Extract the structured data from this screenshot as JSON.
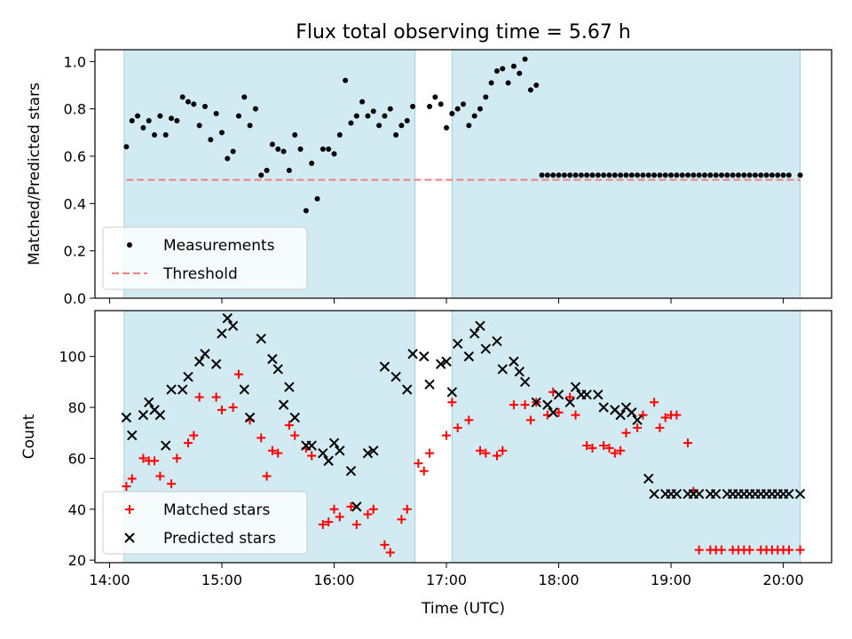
{
  "chart_data": {
    "type": "scatter",
    "title": "Flux total observing time = 5.67 h",
    "xlabel": "Time (UTC)",
    "x_ticks": [
      "14:00",
      "15:00",
      "16:00",
      "17:00",
      "18:00",
      "19:00",
      "20:00"
    ],
    "xlim_hours": [
      13.87,
      20.43
    ],
    "shaded_intervals": [
      [
        14.13,
        16.72
      ],
      [
        17.05,
        20.15
      ]
    ],
    "shade_color": "#add8e6",
    "panels": [
      {
        "ylabel": "Matched/Predicted stars",
        "ylim": [
          0,
          1.05
        ],
        "yticks": [
          "0.0",
          "0.2",
          "0.4",
          "0.6",
          "0.8",
          "1.0"
        ],
        "legend": "lower-left",
        "series": [
          {
            "name": "Measurements",
            "marker": "dot",
            "color": "#000000",
            "x": [
              14.15,
              14.2,
              14.25,
              14.3,
              14.35,
              14.4,
              14.45,
              14.5,
              14.55,
              14.6,
              14.65,
              14.7,
              14.75,
              14.8,
              14.85,
              14.9,
              14.95,
              15.0,
              15.05,
              15.1,
              15.15,
              15.2,
              15.25,
              15.3,
              15.35,
              15.4,
              15.45,
              15.5,
              15.55,
              15.6,
              15.65,
              15.7,
              15.75,
              15.8,
              15.85,
              15.9,
              15.95,
              16.0,
              16.05,
              16.1,
              16.15,
              16.2,
              16.25,
              16.3,
              16.35,
              16.4,
              16.45,
              16.5,
              16.55,
              16.6,
              16.65,
              16.7,
              16.85,
              16.9,
              16.95,
              17.0,
              17.05,
              17.1,
              17.15,
              17.2,
              17.25,
              17.3,
              17.35,
              17.4,
              17.45,
              17.5,
              17.55,
              17.6,
              17.65,
              17.7,
              17.75,
              17.8,
              17.85,
              17.9,
              17.95,
              18.0,
              18.05,
              18.1,
              18.15,
              18.2,
              18.25,
              18.3,
              18.35,
              18.4,
              18.45,
              18.5,
              18.55,
              18.6,
              18.65,
              18.7,
              18.75,
              18.8,
              18.85,
              18.9,
              18.95,
              19.0,
              19.05,
              19.1,
              19.15,
              19.2,
              19.25,
              19.3,
              19.35,
              19.4,
              19.45,
              19.5,
              19.55,
              19.6,
              19.65,
              19.7,
              19.75,
              19.8,
              19.85,
              19.9,
              19.95,
              20.0,
              20.05,
              20.15
            ],
            "y": [
              0.64,
              0.75,
              0.77,
              0.72,
              0.75,
              0.69,
              0.77,
              0.69,
              0.76,
              0.75,
              0.85,
              0.83,
              0.82,
              0.73,
              0.81,
              0.67,
              0.78,
              0.7,
              0.59,
              0.62,
              0.77,
              0.85,
              0.73,
              0.8,
              0.52,
              0.54,
              0.65,
              0.63,
              0.62,
              0.54,
              0.69,
              0.63,
              0.37,
              0.57,
              0.42,
              0.63,
              0.63,
              0.61,
              0.69,
              0.92,
              0.74,
              0.77,
              0.83,
              0.77,
              0.79,
              0.73,
              0.77,
              0.8,
              0.69,
              0.73,
              0.75,
              0.81,
              0.81,
              0.85,
              0.82,
              0.72,
              0.78,
              0.8,
              0.82,
              0.73,
              0.77,
              0.8,
              0.85,
              0.91,
              0.96,
              0.97,
              0.91,
              0.98,
              0.95,
              1.01,
              0.88,
              0.9,
              0.52,
              0.52,
              0.52,
              0.52,
              0.52,
              0.52,
              0.52,
              0.52,
              0.52,
              0.52,
              0.52,
              0.52,
              0.52,
              0.52,
              0.52,
              0.52,
              0.52,
              0.52,
              0.52,
              0.52,
              0.52,
              0.52,
              0.52,
              0.52,
              0.52,
              0.52,
              0.52,
              0.52,
              0.52,
              0.52,
              0.52,
              0.52,
              0.52,
              0.52,
              0.52,
              0.52,
              0.52,
              0.52,
              0.52,
              0.52,
              0.52,
              0.52,
              0.52,
              0.52,
              0.52,
              0.52
            ]
          },
          {
            "name": "Threshold",
            "style": "dashed-line",
            "color": "#f08080",
            "x": [
              14.15,
              20.15
            ],
            "y": [
              0.5,
              0.5
            ]
          }
        ]
      },
      {
        "ylabel": "Count",
        "ylim": [
          19,
          118
        ],
        "yticks": [
          "20",
          "40",
          "60",
          "80",
          "100"
        ],
        "legend": "lower-left",
        "series": [
          {
            "name": "Matched stars",
            "marker": "plus",
            "color": "#ff0000",
            "x": [
              14.15,
              14.2,
              14.3,
              14.35,
              14.4,
              14.45,
              14.55,
              14.6,
              14.7,
              14.75,
              14.8,
              14.95,
              15.0,
              15.1,
              15.15,
              15.25,
              15.35,
              15.4,
              15.45,
              15.5,
              15.6,
              15.65,
              15.75,
              15.8,
              15.9,
              15.95,
              16.0,
              16.05,
              16.15,
              16.2,
              16.3,
              16.35,
              16.45,
              16.5,
              16.6,
              16.65,
              16.75,
              16.8,
              16.85,
              17.0,
              17.05,
              17.1,
              17.2,
              17.3,
              17.35,
              17.45,
              17.5,
              17.6,
              17.7,
              17.75,
              17.8,
              17.9,
              17.95,
              18.0,
              18.1,
              18.15,
              18.25,
              18.3,
              18.4,
              18.45,
              18.5,
              18.55,
              18.6,
              18.7,
              18.75,
              18.85,
              18.9,
              18.95,
              19.0,
              19.05,
              19.15,
              19.2,
              19.25,
              19.35,
              19.4,
              19.45,
              19.55,
              19.6,
              19.65,
              19.7,
              19.8,
              19.85,
              19.9,
              19.95,
              20.0,
              20.05,
              20.15
            ],
            "y": [
              49,
              52,
              60,
              59,
              59,
              53,
              50,
              60,
              66,
              69,
              84,
              84,
              79,
              80,
              93,
              75,
              68,
              53,
              63,
              62,
              73,
              69,
              64,
              61,
              34,
              35,
              40,
              37,
              41,
              34,
              38,
              40,
              26,
              23,
              36,
              40,
              58,
              55,
              62,
              69,
              82,
              72,
              75,
              63,
              62,
              61,
              63,
              81,
              81,
              75,
              82,
              77,
              86,
              78,
              84,
              77,
              65,
              64,
              65,
              64,
              62,
              63,
              70,
              72,
              77,
              82,
              72,
              76,
              77,
              77,
              66,
              47,
              24,
              24,
              24,
              24,
              24,
              24,
              24,
              24,
              24,
              24,
              24,
              24,
              24,
              24,
              24
            ]
          },
          {
            "name": "Predicted stars",
            "marker": "x",
            "color": "#000000",
            "x": [
              14.15,
              14.2,
              14.3,
              14.35,
              14.4,
              14.45,
              14.5,
              14.55,
              14.65,
              14.7,
              14.8,
              14.85,
              14.95,
              15.0,
              15.05,
              15.1,
              15.2,
              15.25,
              15.35,
              15.45,
              15.5,
              15.55,
              15.6,
              15.65,
              15.75,
              15.8,
              15.9,
              15.95,
              16.0,
              16.05,
              16.15,
              16.2,
              16.3,
              16.35,
              16.45,
              16.55,
              16.65,
              16.7,
              16.8,
              16.85,
              16.95,
              17.0,
              17.05,
              17.1,
              17.2,
              17.25,
              17.3,
              17.35,
              17.45,
              17.5,
              17.6,
              17.65,
              17.7,
              17.8,
              17.9,
              17.95,
              18.0,
              18.1,
              18.15,
              18.2,
              18.25,
              18.35,
              18.4,
              18.5,
              18.55,
              18.6,
              18.65,
              18.7,
              18.8,
              18.85,
              18.95,
              19.0,
              19.05,
              19.15,
              19.2,
              19.25,
              19.35,
              19.4,
              19.5,
              19.55,
              19.6,
              19.65,
              19.7,
              19.75,
              19.8,
              19.85,
              19.9,
              19.95,
              20.0,
              20.05,
              20.15
            ],
            "y": [
              76,
              69,
              77,
              82,
              79,
              77,
              65,
              87,
              87,
              92,
              98,
              101,
              97,
              109,
              115,
              112,
              87,
              76,
              107,
              99,
              95,
              81,
              88,
              76,
              65,
              65,
              62,
              59,
              66,
              63,
              55,
              41,
              62,
              63,
              96,
              92,
              87,
              101,
              100,
              89,
              97,
              98,
              86,
              105,
              100,
              109,
              112,
              103,
              106,
              95,
              98,
              94,
              90,
              82,
              81,
              78,
              85,
              82,
              88,
              85,
              85,
              85,
              80,
              79,
              77,
              80,
              78,
              75,
              52,
              46,
              46,
              46,
              46,
              46,
              46,
              46,
              46,
              46,
              46,
              46,
              46,
              46,
              46,
              46,
              46,
              46,
              46,
              46,
              46,
              46,
              46
            ]
          }
        ]
      }
    ]
  }
}
